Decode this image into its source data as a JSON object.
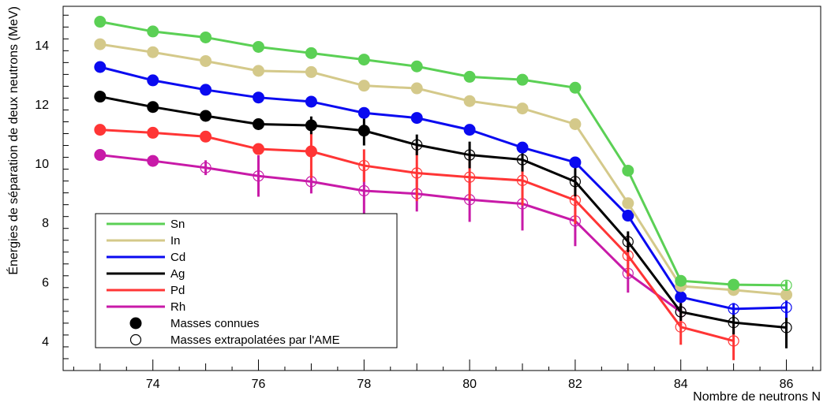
{
  "chart_data": {
    "type": "line",
    "xlabel": "Nombre de neutrons N",
    "ylabel": "Énergies de séparation de deux neutrons (MeV)",
    "xlim": [
      72.3,
      86.65
    ],
    "ylim": [
      3.0,
      15.3
    ],
    "x_ticks": [
      74,
      76,
      78,
      80,
      82,
      84,
      86
    ],
    "y_ticks": [
      4,
      6,
      8,
      10,
      12,
      14
    ],
    "grid": false,
    "legend_position": "bottom-left",
    "series": [
      {
        "name": "Sn",
        "color": "#5bd055",
        "x": [
          73,
          74,
          75,
          76,
          77,
          78,
          79,
          80,
          81,
          82,
          83,
          84,
          85,
          86
        ],
        "y": [
          14.78,
          14.45,
          14.25,
          13.93,
          13.72,
          13.5,
          13.27,
          12.92,
          12.82,
          12.55,
          9.75,
          6.03,
          5.9,
          5.88
        ],
        "known": [
          true,
          true,
          true,
          true,
          true,
          true,
          true,
          true,
          true,
          true,
          true,
          true,
          true,
          false
        ],
        "err": [
          0,
          0,
          0,
          0,
          0,
          0,
          0,
          0,
          0,
          0,
          0,
          0,
          0,
          0.15
        ]
      },
      {
        "name": "In",
        "color": "#d4c98a",
        "x": [
          73,
          74,
          75,
          76,
          77,
          78,
          79,
          80,
          81,
          82,
          83,
          84,
          85,
          86
        ],
        "y": [
          14.02,
          13.75,
          13.45,
          13.12,
          13.08,
          12.62,
          12.53,
          12.1,
          11.85,
          11.32,
          8.65,
          5.85,
          5.72,
          5.56
        ],
        "known": [
          true,
          true,
          true,
          true,
          true,
          true,
          true,
          true,
          true,
          true,
          true,
          true,
          true,
          true
        ],
        "err": [
          0,
          0,
          0,
          0,
          0,
          0,
          0,
          0,
          0,
          0,
          0,
          0,
          0,
          0
        ]
      },
      {
        "name": "Cd",
        "color": "#0a0af0",
        "x": [
          73,
          74,
          75,
          76,
          77,
          78,
          79,
          80,
          81,
          82,
          83,
          84,
          85,
          86
        ],
        "y": [
          13.25,
          12.8,
          12.48,
          12.22,
          12.08,
          11.7,
          11.53,
          11.13,
          10.53,
          10.03,
          8.23,
          5.48,
          5.08,
          5.13
        ],
        "known": [
          true,
          true,
          true,
          true,
          true,
          true,
          true,
          true,
          true,
          true,
          true,
          true,
          false,
          false
        ],
        "err": [
          0,
          0,
          0,
          0,
          0,
          0,
          0,
          0,
          0,
          0,
          0,
          0,
          0.2,
          0.35
        ]
      },
      {
        "name": "Ag",
        "color": "#000000",
        "x": [
          73,
          74,
          75,
          76,
          77,
          78,
          79,
          80,
          81,
          82,
          83,
          84,
          85,
          86
        ],
        "y": [
          12.25,
          11.9,
          11.6,
          11.32,
          11.28,
          11.1,
          10.62,
          10.28,
          10.12,
          9.38,
          7.35,
          4.98,
          4.62,
          4.45
        ],
        "known": [
          true,
          true,
          true,
          true,
          true,
          true,
          false,
          false,
          false,
          false,
          false,
          false,
          false,
          false
        ],
        "err": [
          0,
          0,
          0,
          0,
          0.3,
          0.5,
          0.35,
          0.45,
          0.4,
          0.5,
          0.35,
          0.3,
          0.4,
          0.7
        ]
      },
      {
        "name": "Pd",
        "color": "#ff3535",
        "x": [
          73,
          74,
          75,
          76,
          77,
          78,
          79,
          80,
          81,
          82,
          83,
          84,
          85
        ],
        "y": [
          11.13,
          11.03,
          10.9,
          10.48,
          10.4,
          9.92,
          9.67,
          9.53,
          9.42,
          8.75,
          6.88,
          4.47,
          4.0
        ],
        "known": [
          true,
          true,
          true,
          true,
          true,
          false,
          false,
          false,
          false,
          false,
          false,
          false,
          false
        ],
        "err": [
          0,
          0,
          0,
          0,
          0.9,
          0.55,
          0.95,
          0.75,
          0.85,
          0.8,
          0.7,
          0.6,
          0.65
        ]
      },
      {
        "name": "Rh",
        "color": "#c81aa8",
        "x": [
          73,
          74,
          75,
          76,
          77,
          78,
          79,
          80,
          81,
          82,
          83,
          84
        ],
        "y": [
          10.28,
          10.08,
          9.85,
          9.57,
          9.38,
          9.07,
          8.97,
          8.77,
          8.63,
          8.05,
          6.28,
          4.98
        ],
        "known": [
          true,
          true,
          false,
          false,
          false,
          false,
          false,
          false,
          false,
          false,
          false,
          false
        ],
        "err": [
          0,
          0,
          0.25,
          0.7,
          0.4,
          0.8,
          0.6,
          0.75,
          0.9,
          0.85,
          0.65,
          0.45
        ]
      }
    ],
    "legend_markers": [
      {
        "label": "Masses connues",
        "marker": "filled-circle"
      },
      {
        "label": "Masses extrapolatées par l'AME",
        "marker": "open-circle"
      }
    ]
  }
}
